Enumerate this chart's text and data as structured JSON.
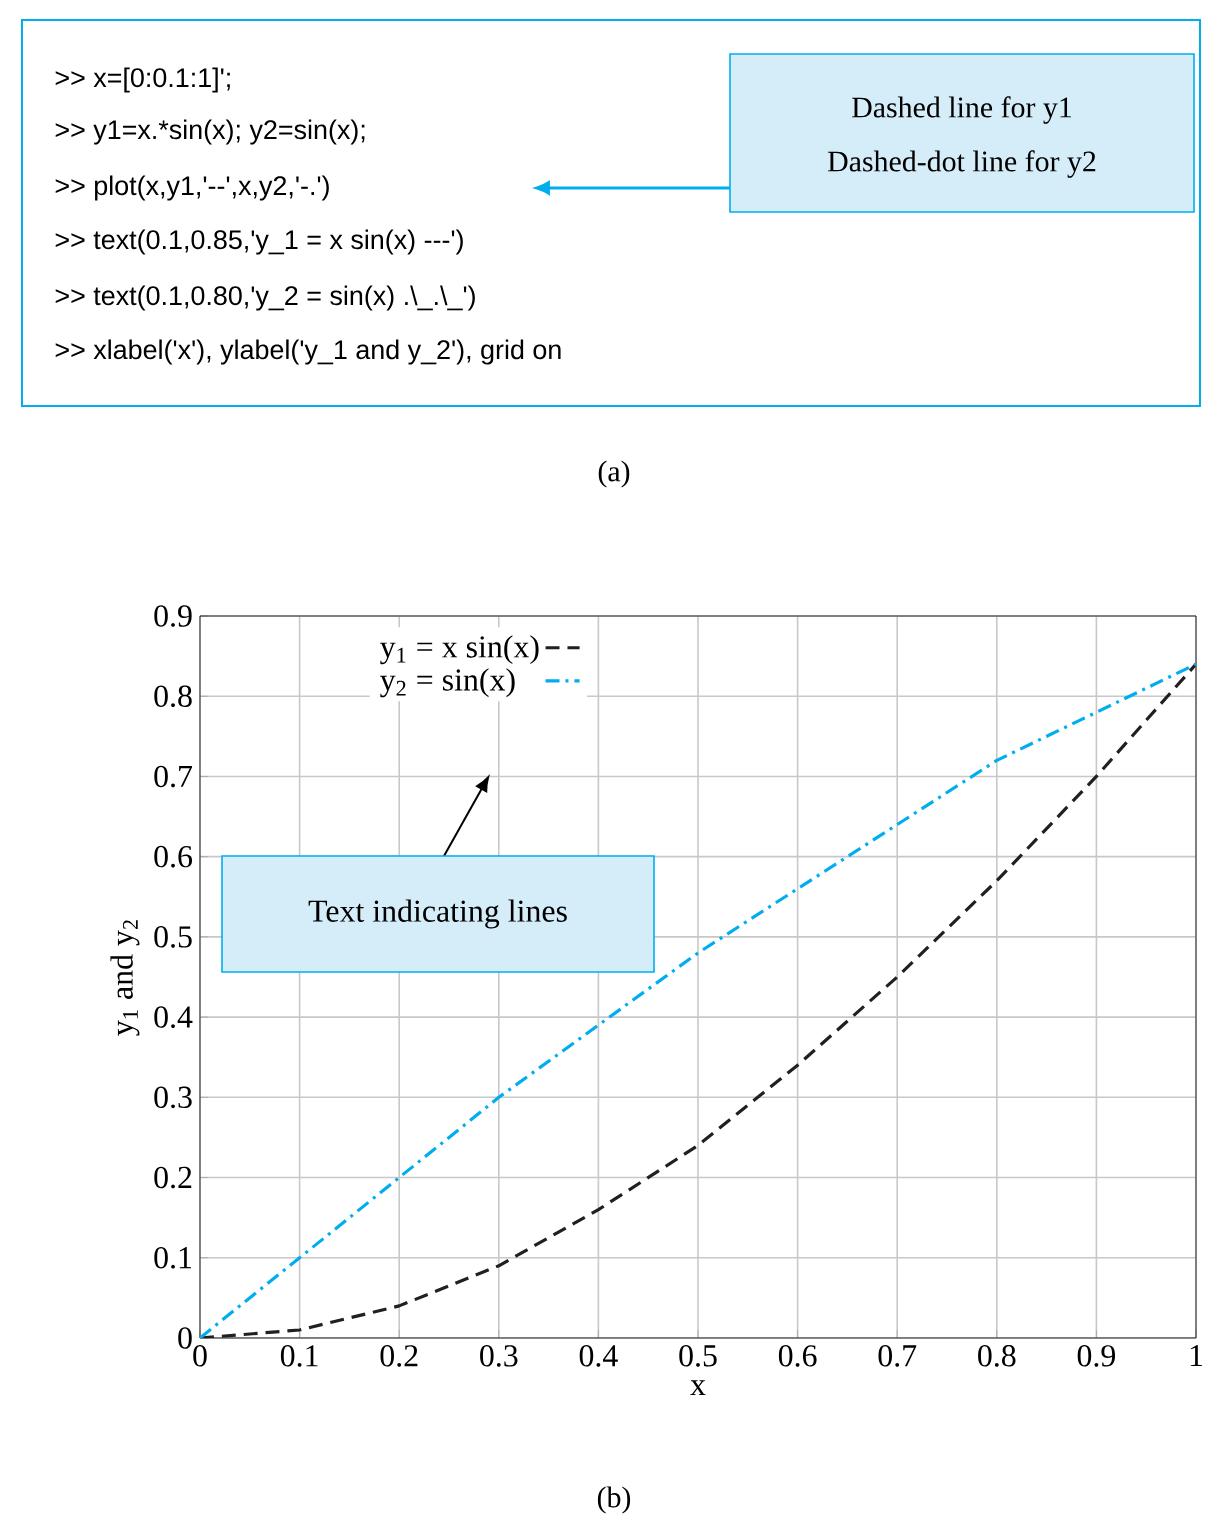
{
  "chart_data": {
    "type": "line",
    "xlabel": "x",
    "ylabel": "y$_{1}$ and y$_{2}$",
    "x": [
      0,
      0.1,
      0.2,
      0.3,
      0.4,
      0.5,
      0.6,
      0.7,
      0.8,
      0.9,
      1
    ],
    "series": [
      {
        "name": "y$_{1}$ = x sin(x)",
        "color": "#231f20",
        "line_style": "dashed",
        "values": [
          0,
          0.01,
          0.04,
          0.09,
          0.16,
          0.24,
          0.34,
          0.45,
          0.57,
          0.7,
          0.84
        ]
      },
      {
        "name": "y$_{2}$ = sin(x)",
        "color": "#00aeef",
        "line_style": "dashdotted",
        "values": [
          0,
          0.1,
          0.2,
          0.3,
          0.39,
          0.48,
          0.56,
          0.64,
          0.72,
          0.78,
          0.84
        ]
      }
    ],
    "xlim": [
      0,
      1
    ],
    "ylim": [
      0,
      0.9
    ],
    "xticks": [
      0,
      0.1,
      0.2,
      0.3,
      0.4,
      0.5,
      0.6,
      0.7,
      0.8,
      0.9,
      1
    ],
    "yticks": [
      0,
      0.1,
      0.2,
      0.3,
      0.4,
      0.5,
      0.6,
      0.7,
      0.8,
      0.9
    ],
    "grid": true,
    "legend": "top left",
    "annotations": [
      ">>  x=[0:0.1:1]';",
      ">>  y1=x.*sin(x); y2=sin(x);",
      ">> plot(x,y1,'--',x,y2,'-.')",
      ">> text(0.1,0.85,'y_1 = x sin(x) ---')",
      ">> text(0.1,0.80,'y_2 = sin(x) .\\_.\\_')",
      ">> xlabel('x'), ylabel('y_1 and y_2'), grid on",
      "Dashed line for y1",
      "Dashed-dot line for y2",
      "(a)",
      "Text indicating lines",
      "(b)"
    ]
  }
}
